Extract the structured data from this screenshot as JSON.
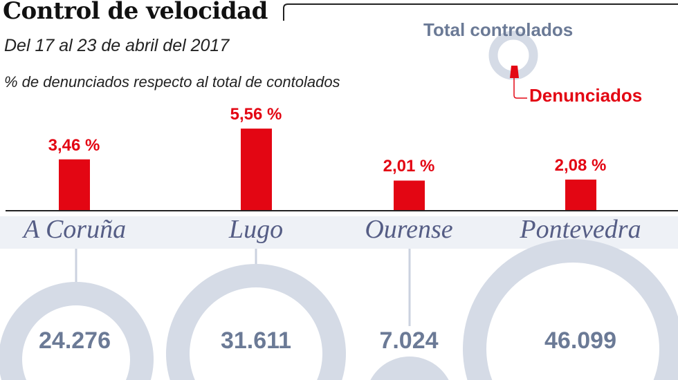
{
  "chart_data": {
    "type": "bar",
    "title": "Control de velocidad",
    "subtitle": "Del 17 al 23 de abril del 2017",
    "ylabel": "% de denunciados respecto al total de contolados",
    "categories": [
      "A Coruña",
      "Lugo",
      "Ourense",
      "Pontevedra"
    ],
    "values": [
      3.46,
      5.56,
      2.01,
      2.08
    ],
    "data_labels": [
      "3,46 %",
      "5,56 %",
      "2,01 %",
      "2,08 %"
    ],
    "totals": [
      24276,
      31611,
      7024,
      46099
    ],
    "total_labels": [
      "24.276",
      "31.611",
      "7.024",
      "46.099"
    ],
    "legend": {
      "total": "Total controlados",
      "denounced": "Denunciados"
    },
    "colors": {
      "bar": "#e30613",
      "ring": "#d5dbe6",
      "name": "#555d85",
      "number": "#6b7a96"
    }
  }
}
